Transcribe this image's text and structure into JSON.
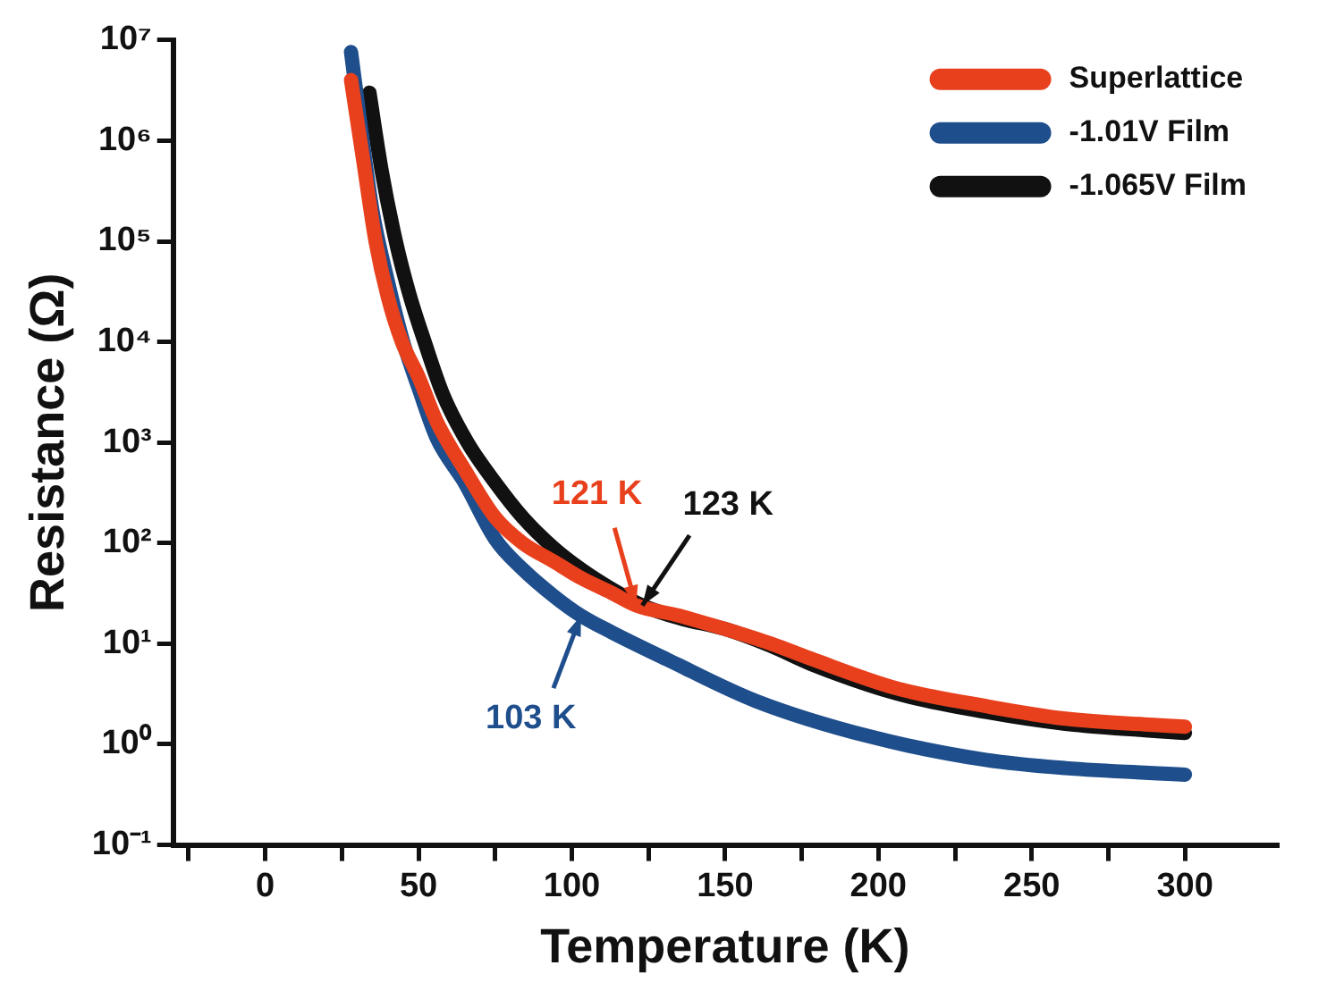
{
  "chart_data": {
    "type": "line",
    "xlabel": "Temperature (K)",
    "ylabel": "Resistance (Ω)",
    "log": "y",
    "grid": false,
    "legend": "top right",
    "marker": "none",
    "line_style": "solid",
    "xlim": [
      -30,
      330
    ],
    "xticks": [
      {
        "value": -25,
        "label": null
      },
      0,
      {
        "value": 25,
        "label": null
      },
      50,
      {
        "value": 75,
        "label": null
      },
      100,
      {
        "value": 125,
        "label": null
      },
      150,
      {
        "value": 175,
        "label": null
      },
      200,
      {
        "value": 225,
        "label": null
      },
      250,
      {
        "value": 275,
        "label": null
      },
      300
    ],
    "ylim": [
      0.1,
      10000000
    ],
    "yticks": [
      {
        "value": 0.1,
        "label": "10⁻¹"
      },
      {
        "value": 1,
        "label": "10⁰"
      },
      {
        "value": 10,
        "label": "10¹"
      },
      {
        "value": 100,
        "label": "10²"
      },
      {
        "value": 1000,
        "label": "10³"
      },
      {
        "value": 10000,
        "label": "10⁴"
      },
      {
        "value": 100000,
        "label": "10⁵"
      },
      {
        "value": 1000000,
        "label": "10⁶"
      },
      {
        "value": 10000000,
        "label": "10⁷"
      }
    ],
    "series": [
      {
        "name": "Superlattice",
        "color": "#e8401c",
        "x": [
          28,
          32,
          36,
          40,
          44.6,
          50,
          56,
          65,
          75,
          84,
          94,
          103,
          113,
          121,
          135,
          150,
          165,
          178,
          206,
          235,
          261,
          300
        ],
        "values": [
          4000000,
          630000,
          100000,
          28000,
          10000,
          4500,
          1600,
          540,
          180,
          100,
          66,
          45,
          32,
          24,
          19,
          14,
          10,
          7.1,
          3.6,
          2.4,
          1.8,
          1.5
        ]
      },
      {
        "name": "-1.01V Film",
        "color": "#1f4e8c",
        "x": [
          28,
          31,
          35,
          40,
          45,
          50,
          56,
          65,
          75,
          84,
          94,
          103,
          113,
          131,
          160,
          197,
          235,
          261,
          300
        ],
        "values": [
          7600000,
          1500000,
          200000,
          40000,
          10000,
          3500,
          1100,
          400,
          110,
          55,
          30,
          19,
          13,
          7,
          2.7,
          1.2,
          0.7,
          0.58,
          0.5
        ]
      },
      {
        "name": "-1.065V Film",
        "color": "#111111",
        "x": [
          34,
          38,
          42.6,
          47,
          52,
          58,
          66,
          75,
          84,
          94,
          103,
          113,
          123,
          135,
          150,
          165,
          178,
          206,
          235,
          261,
          300
        ],
        "values": [
          3000000,
          500000,
          100000,
          30000,
          10000,
          3000,
          1000,
          400,
          180,
          90,
          55,
          35,
          24,
          18,
          14,
          9.5,
          6.3,
          3.2,
          2.1,
          1.6,
          1.3
        ]
      }
    ],
    "annotations": [
      {
        "text": "121 K",
        "x": 121,
        "y": 24
      },
      {
        "text": "103 K",
        "x": 103,
        "y": 19
      },
      {
        "text": "123 K",
        "x": 123,
        "y": 24
      }
    ]
  }
}
